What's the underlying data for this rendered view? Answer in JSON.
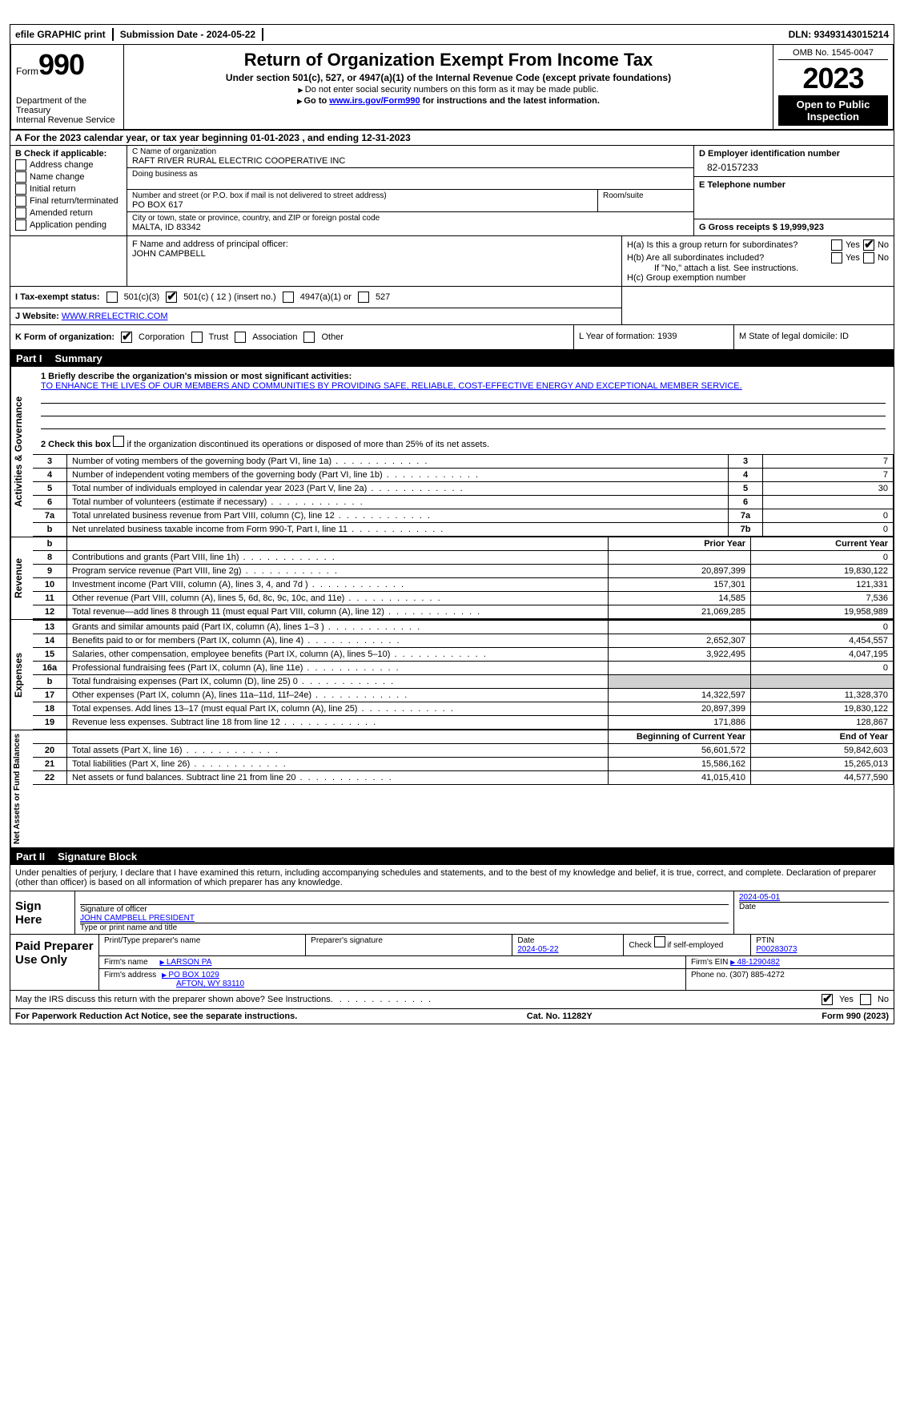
{
  "topbar": {
    "efile_label": "efile GRAPHIC print",
    "sub_date_label": "Submission Date - 2024-05-22",
    "dln_label": "DLN: 93493143015214"
  },
  "header": {
    "form_prefix": "Form",
    "form_number": "990",
    "dept": "Department of the Treasury",
    "irs": "Internal Revenue Service",
    "title": "Return of Organization Exempt From Income Tax",
    "sub1": "Under section 501(c), 527, or 4947(a)(1) of the Internal Revenue Code (except private foundations)",
    "sub2": "Do not enter social security numbers on this form as it may be made public.",
    "sub3_pre": "Go to ",
    "sub3_link": "www.irs.gov/Form990",
    "sub3_post": " for instructions and the latest information.",
    "omb": "OMB No. 1545-0047",
    "year": "2023",
    "inspection": "Open to Public Inspection"
  },
  "period": {
    "text": "A For the 2023 calendar year, or tax year beginning 01-01-2023   , and ending 12-31-2023"
  },
  "sectionB": {
    "heading": "B Check if applicable:",
    "items": [
      "Address change",
      "Name change",
      "Initial return",
      "Final return/terminated",
      "Amended return",
      "Application pending"
    ]
  },
  "sectionC": {
    "name_label": "C Name of organization",
    "name": "RAFT RIVER RURAL ELECTRIC COOPERATIVE INC",
    "dba_label": "Doing business as",
    "dba": "",
    "addr_label": "Number and street (or P.O. box if mail is not delivered to street address)",
    "addr": "PO BOX 617",
    "suite_label": "Room/suite",
    "city_label": "City or town, state or province, country, and ZIP or foreign postal code",
    "city": "MALTA, ID  83342"
  },
  "sectionD": {
    "label": "D Employer identification number",
    "value": "82-0157233"
  },
  "sectionE": {
    "label": "E Telephone number",
    "value": ""
  },
  "sectionG": {
    "label": "G Gross receipts $ 19,999,923"
  },
  "sectionF": {
    "label": "F  Name and address of principal officer:",
    "value": "JOHN CAMPBELL"
  },
  "sectionH": {
    "a_label": "H(a)  Is this a group return for subordinates?",
    "b_label": "H(b)  Are all subordinates included?",
    "b_note": "If \"No,\" attach a list. See instructions.",
    "c_label": "H(c)  Group exemption number ",
    "yes": "Yes",
    "no": "No"
  },
  "sectionI": {
    "label": "I    Tax-exempt status:",
    "opt1": "501(c)(3)",
    "opt2": "501(c) ( 12 ) (insert no.)",
    "opt3": "4947(a)(1) or",
    "opt4": "527"
  },
  "sectionJ": {
    "label": "J   Website: ",
    "value": "WWW.RRELECTRIC.COM"
  },
  "sectionK": {
    "label": "K Form of organization:",
    "opt1": "Corporation",
    "opt2": "Trust",
    "opt3": "Association",
    "opt4": "Other"
  },
  "sectionL": {
    "label": "L Year of formation: 1939"
  },
  "sectionM": {
    "label": "M State of legal domicile: ID"
  },
  "part1": {
    "header_part": "Part I",
    "header_title": "Summary",
    "q1_label": "1  Briefly describe the organization's mission or most significant activities:",
    "q1_value": "TO ENHANCE THE LIVES OF OUR MEMBERS AND COMMUNITIES BY PROVIDING SAFE, RELIABLE, COST-EFFECTIVE ENERGY AND EXCEPTIONAL MEMBER SERVICE.",
    "q2_label": "2  Check this box ",
    "q2_suffix": " if the organization discontinued its operations or disposed of more than 25% of its net assets.",
    "vlabel_ag": "Activities & Governance",
    "vlabel_rev": "Revenue",
    "vlabel_exp": "Expenses",
    "vlabel_net": "Net Assets or Fund Balances",
    "prior_year": "Prior Year",
    "current_year": "Current Year",
    "begin_year": "Beginning of Current Year",
    "end_year": "End of Year",
    "rows_ag": [
      {
        "n": "3",
        "label": "Number of voting members of the governing body (Part VI, line 1a)",
        "box": "3",
        "val": "7"
      },
      {
        "n": "4",
        "label": "Number of independent voting members of the governing body (Part VI, line 1b)",
        "box": "4",
        "val": "7"
      },
      {
        "n": "5",
        "label": "Total number of individuals employed in calendar year 2023 (Part V, line 2a)",
        "box": "5",
        "val": "30"
      },
      {
        "n": "6",
        "label": "Total number of volunteers (estimate if necessary)",
        "box": "6",
        "val": ""
      },
      {
        "n": "7a",
        "label": "Total unrelated business revenue from Part VIII, column (C), line 12",
        "box": "7a",
        "val": "0"
      },
      {
        "n": "b",
        "label": "Net unrelated business taxable income from Form 990-T, Part I, line 11",
        "box": "7b",
        "val": "0"
      }
    ],
    "rows_rev": [
      {
        "n": "8",
        "label": "Contributions and grants (Part VIII, line 1h)",
        "prior": "",
        "curr": "0"
      },
      {
        "n": "9",
        "label": "Program service revenue (Part VIII, line 2g)",
        "prior": "20,897,399",
        "curr": "19,830,122"
      },
      {
        "n": "10",
        "label": "Investment income (Part VIII, column (A), lines 3, 4, and 7d )",
        "prior": "157,301",
        "curr": "121,331"
      },
      {
        "n": "11",
        "label": "Other revenue (Part VIII, column (A), lines 5, 6d, 8c, 9c, 10c, and 11e)",
        "prior": "14,585",
        "curr": "7,536"
      },
      {
        "n": "12",
        "label": "Total revenue—add lines 8 through 11 (must equal Part VIII, column (A), line 12)",
        "prior": "21,069,285",
        "curr": "19,958,989"
      }
    ],
    "rows_exp": [
      {
        "n": "13",
        "label": "Grants and similar amounts paid (Part IX, column (A), lines 1–3 )",
        "prior": "",
        "curr": "0"
      },
      {
        "n": "14",
        "label": "Benefits paid to or for members (Part IX, column (A), line 4)",
        "prior": "2,652,307",
        "curr": "4,454,557"
      },
      {
        "n": "15",
        "label": "Salaries, other compensation, employee benefits (Part IX, column (A), lines 5–10)",
        "prior": "3,922,495",
        "curr": "4,047,195"
      },
      {
        "n": "16a",
        "label": "Professional fundraising fees (Part IX, column (A), line 11e)",
        "prior": "",
        "curr": "0"
      },
      {
        "n": "b",
        "label": "Total fundraising expenses (Part IX, column (D), line 25) 0",
        "prior": "grey",
        "curr": "grey"
      },
      {
        "n": "17",
        "label": "Other expenses (Part IX, column (A), lines 11a–11d, 11f–24e)",
        "prior": "14,322,597",
        "curr": "11,328,370"
      },
      {
        "n": "18",
        "label": "Total expenses. Add lines 13–17 (must equal Part IX, column (A), line 25)",
        "prior": "20,897,399",
        "curr": "19,830,122"
      },
      {
        "n": "19",
        "label": "Revenue less expenses. Subtract line 18 from line 12",
        "prior": "171,886",
        "curr": "128,867"
      }
    ],
    "rows_net": [
      {
        "n": "20",
        "label": "Total assets (Part X, line 16)",
        "prior": "56,601,572",
        "curr": "59,842,603"
      },
      {
        "n": "21",
        "label": "Total liabilities (Part X, line 26)",
        "prior": "15,586,162",
        "curr": "15,265,013"
      },
      {
        "n": "22",
        "label": "Net assets or fund balances. Subtract line 21 from line 20",
        "prior": "41,015,410",
        "curr": "44,577,590"
      }
    ]
  },
  "part2": {
    "header_part": "Part II",
    "header_title": "Signature Block",
    "decl": "Under penalties of perjury, I declare that I have examined this return, including accompanying schedules and statements, and to the best of my knowledge and belief, it is true, correct, and complete. Declaration of preparer (other than officer) is based on all information of which preparer has any knowledge.",
    "sign_here": "Sign Here",
    "sig_officer_label": "Signature of officer",
    "sig_officer_name": "JOHN CAMPBELL  PRESIDENT",
    "sig_type_label": "Type or print name and title",
    "sig_date_label": "Date",
    "sig_date": "2024-05-01",
    "paid_label": "Paid Preparer Use Only",
    "prep_name_label": "Print/Type preparer's name",
    "prep_sig_label": "Preparer's signature",
    "prep_date_label": "Date",
    "prep_date": "2024-05-22",
    "prep_check_label": "Check",
    "prep_check_suffix": "if self-employed",
    "ptin_label": "PTIN",
    "ptin": "P00283073",
    "firm_name_label": "Firm's name",
    "firm_name": "LARSON PA",
    "firm_ein_label": "Firm's EIN",
    "firm_ein": "48-1290482",
    "firm_addr_label": "Firm's address",
    "firm_addr1": "PO BOX 1029",
    "firm_addr2": "AFTON, WY  83110",
    "phone_label": "Phone no. (307) 885-4272",
    "discuss": "May the IRS discuss this return with the preparer shown above? See Instructions.",
    "yes": "Yes",
    "no": "No"
  },
  "footer": {
    "left": "For Paperwork Reduction Act Notice, see the separate instructions.",
    "mid": "Cat. No. 11282Y",
    "right": "Form 990 (2023)"
  }
}
